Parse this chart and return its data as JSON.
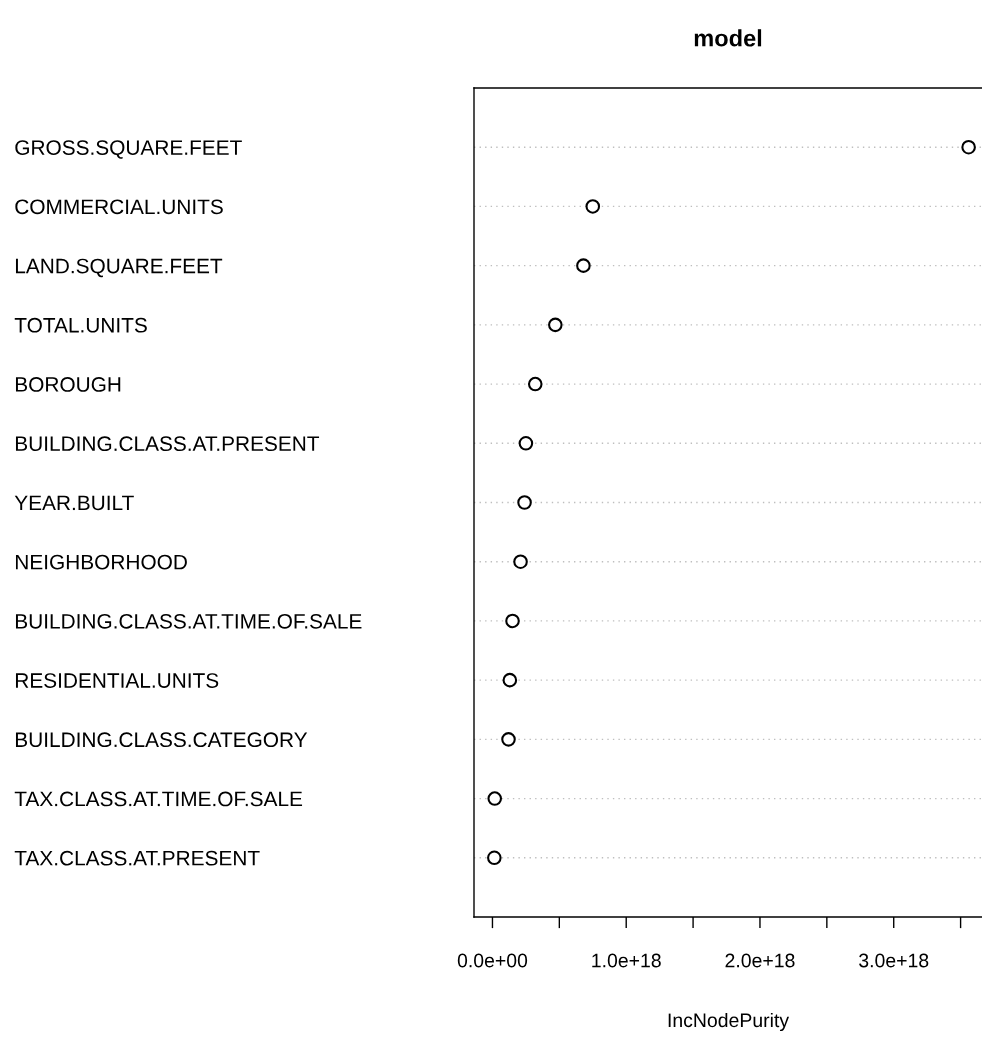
{
  "chart_data": {
    "type": "scatter",
    "title": "model",
    "xlabel": "IncNodePurity",
    "categories": [
      "GROSS.SQUARE.FEET",
      "COMMERCIAL.UNITS",
      "LAND.SQUARE.FEET",
      "TOTAL.UNITS",
      "BOROUGH",
      "BUILDING.CLASS.AT.PRESENT",
      "YEAR.BUILT",
      "NEIGHBORHOOD",
      "BUILDING.CLASS.AT.TIME.OF.SALE",
      "RESIDENTIAL.UNITS",
      "BUILDING.CLASS.CATEGORY",
      "TAX.CLASS.AT.TIME.OF.SALE",
      "TAX.CLASS.AT.PRESENT"
    ],
    "orientation": "horizontal",
    "values": [
      3.56e+18,
      7.5e+17,
      6.8e+17,
      4.7e+17,
      3.2e+17,
      2.5e+17,
      2.4e+17,
      2.1e+17,
      1.5e+17,
      1.3e+17,
      1.2e+17,
      1.7e+16,
      1.4e+16
    ],
    "color": "#000000",
    "marker": "circle",
    "grid": "y",
    "xlim": [
      -1.38e+17,
      3.66e+18
    ],
    "xticks": [
      {
        "value": 0,
        "label": "0.0e+00"
      },
      {
        "value": 5e+17,
        "label": null
      },
      {
        "value": 1e+18,
        "label": "1.0e+18"
      },
      {
        "value": 1.5e+18,
        "label": null
      },
      {
        "value": 2e+18,
        "label": "2.0e+18"
      },
      {
        "value": 2.5e+18,
        "label": null
      },
      {
        "value": 3e+18,
        "label": "3.0e+18"
      },
      {
        "value": 3.5e+18,
        "label": null
      }
    ]
  }
}
